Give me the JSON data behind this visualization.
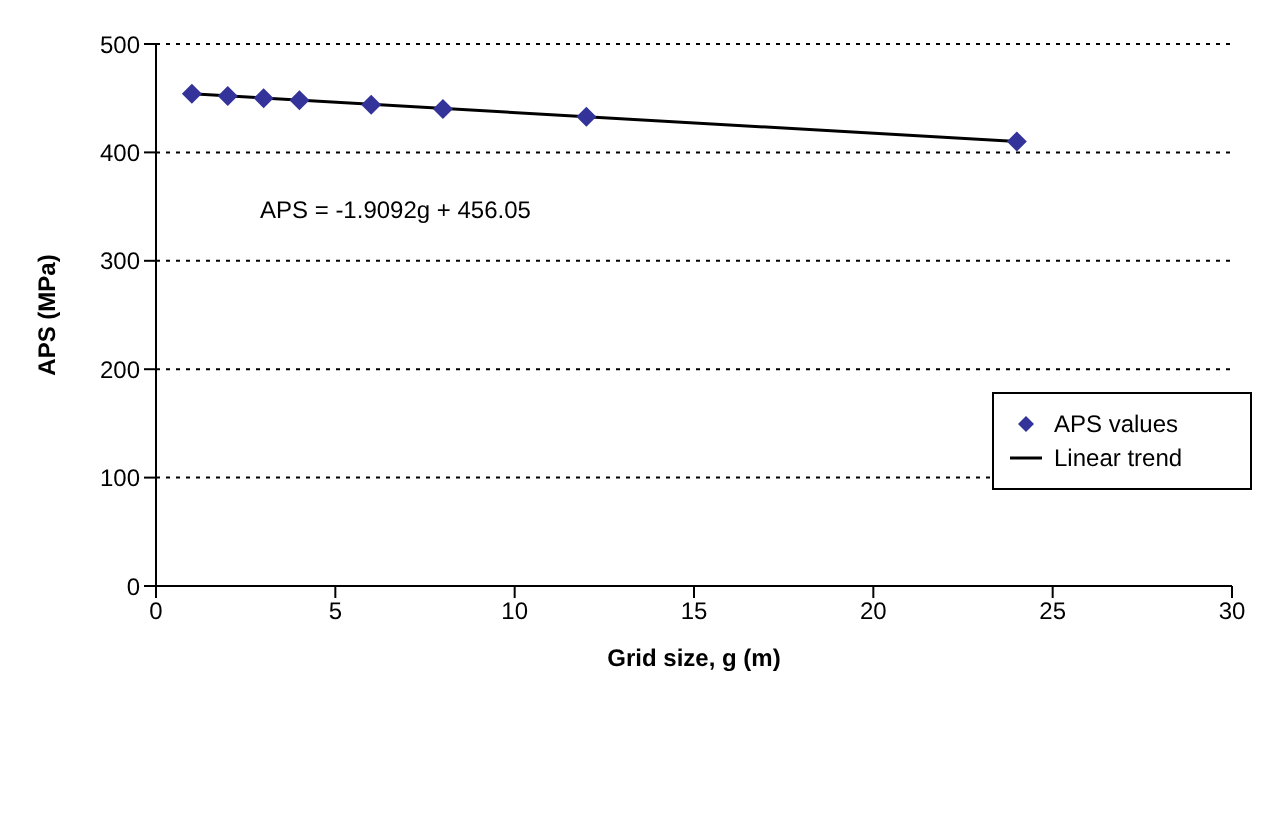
{
  "chart_data": {
    "type": "scatter",
    "xlabel": "Grid size, g (m)",
    "ylabel": "APS (MPa)",
    "xlim": [
      0,
      30
    ],
    "xticks": [
      0,
      5,
      10,
      15,
      20,
      25,
      30
    ],
    "ylim": [
      0,
      500
    ],
    "yticks": [
      0,
      100,
      200,
      300,
      400,
      500
    ],
    "grid": "y",
    "legend": "right",
    "marker": "diamond",
    "annotations": [
      "APS = -1.9092g + 456.05"
    ],
    "series": [
      {
        "name": "APS values",
        "color": "#333399",
        "x": [
          1,
          2,
          3,
          4,
          6,
          8,
          12,
          24
        ],
        "values": [
          454,
          452,
          450,
          448,
          444,
          440,
          433,
          410
        ]
      },
      {
        "name": "Linear trend",
        "type": "line",
        "color": "#000000",
        "line_style": "solid",
        "marker": "none",
        "x": [
          1,
          24
        ],
        "values": [
          454,
          410
        ]
      }
    ]
  }
}
